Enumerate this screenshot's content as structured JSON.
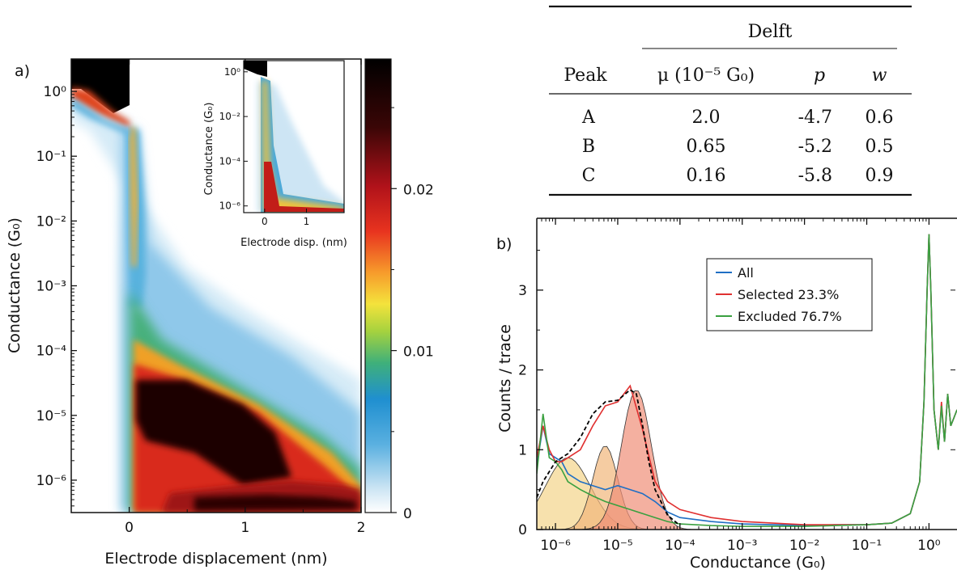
{
  "panel_labels": {
    "a": "a)",
    "b": "b)"
  },
  "table": {
    "group_header": "Delft",
    "columns": [
      "Peak",
      "μ (10⁻⁵ G₀)",
      "p",
      "w"
    ],
    "rows": [
      {
        "peak": "A",
        "mu": "2.0",
        "p": "-4.7",
        "w": "0.6"
      },
      {
        "peak": "B",
        "mu": "0.65",
        "p": "-5.2",
        "w": "0.5"
      },
      {
        "peak": "C",
        "mu": "0.16",
        "p": "-5.8",
        "w": "0.9"
      }
    ]
  },
  "chart_data": [
    {
      "id": "a-main",
      "type": "heatmap",
      "xlabel": "Electrode displacement (nm)",
      "ylabel": "Conductance (G₀)",
      "xlim": [
        -0.5,
        2.0
      ],
      "ylim_log10": [
        -6.5,
        0.5
      ],
      "x_ticks": [
        "0",
        "1",
        "2"
      ],
      "y_ticks": [
        "10⁰",
        "10⁻¹",
        "10⁻²",
        "10⁻³",
        "10⁻⁴",
        "10⁻⁵",
        "10⁻⁶"
      ],
      "colorbar": {
        "range": [
          0,
          0.028
        ],
        "ticks": [
          "0",
          "0.01",
          "0.02"
        ],
        "colors": [
          "#ffffff",
          "#cfe6f4",
          "#5ab0e0",
          "#1f8fd0",
          "#3fb07a",
          "#a6d23e",
          "#f4e33c",
          "#f79a2b",
          "#e8331f",
          "#b0121a",
          "#3a0606",
          "#000000"
        ]
      },
      "regions": [
        {
          "name": "contact",
          "x": [
            -0.5,
            0.0
          ],
          "log10_g": [
            0.0,
            0.5
          ],
          "density": "high"
        },
        {
          "name": "molecular plateau",
          "x": [
            0.1,
            1.2
          ],
          "log10_g": [
            -5.5,
            -4.3
          ],
          "density": "high"
        },
        {
          "name": "background",
          "x": [
            0.4,
            1.9
          ],
          "log10_g": [
            -6.4,
            -5.9
          ],
          "density": "high"
        }
      ]
    },
    {
      "id": "a-inset",
      "type": "heatmap",
      "xlabel": "Electrode disp. (nm)",
      "ylabel": "Conductance (G₀)",
      "xlim": [
        -0.5,
        1.9
      ],
      "ylim_log10": [
        -6.3,
        0.5
      ],
      "x_ticks": [
        "0",
        "1"
      ],
      "y_ticks": [
        "10⁰",
        "10⁻²",
        "10⁻⁴",
        "10⁻⁶"
      ]
    },
    {
      "id": "b",
      "type": "line",
      "xlabel": "Conductance (G₀)",
      "ylabel": "Counts / trace",
      "x_scale": "log",
      "xlim_log10": [
        -6.3,
        0.45
      ],
      "ylim": [
        0,
        3.9
      ],
      "x_ticks": [
        "10⁻⁶",
        "10⁻⁵",
        "10⁻⁴",
        "10⁻³",
        "10⁻²",
        "10⁻¹",
        "10⁰"
      ],
      "y_ticks": [
        "0",
        "1",
        "2",
        "3"
      ],
      "legend_position": "top-right",
      "series": [
        {
          "name": "All",
          "color": "#1f6fc4",
          "log10x": [
            -6.3,
            -6.2,
            -6.1,
            -6.0,
            -5.9,
            -5.8,
            -5.6,
            -5.4,
            -5.2,
            -5.0,
            -4.8,
            -4.6,
            -4.4,
            -4.2,
            -4.0,
            -3.5,
            -3.0,
            -2.5,
            -2.0,
            -1.5,
            -1.0,
            -0.6,
            -0.3,
            -0.15,
            -0.08,
            -0.03,
            0.0,
            0.03,
            0.08,
            0.15,
            0.2,
            0.25,
            0.3,
            0.35,
            0.4,
            0.45
          ],
          "y": [
            0.8,
            1.3,
            0.95,
            0.9,
            0.85,
            0.7,
            0.6,
            0.55,
            0.5,
            0.55,
            0.5,
            0.45,
            0.35,
            0.22,
            0.15,
            0.1,
            0.07,
            0.06,
            0.05,
            0.06,
            0.06,
            0.08,
            0.2,
            0.6,
            1.6,
            3.0,
            3.7,
            3.0,
            1.5,
            1.0,
            1.55,
            1.1,
            1.7,
            1.3,
            1.4,
            1.5
          ]
        },
        {
          "name": "Selected 23.3%",
          "color": "#e03030",
          "log10x": [
            -6.3,
            -6.2,
            -6.1,
            -6.0,
            -5.9,
            -5.8,
            -5.6,
            -5.4,
            -5.2,
            -5.0,
            -4.8,
            -4.6,
            -4.4,
            -4.2,
            -4.0,
            -3.5,
            -3.0,
            -2.5,
            -2.0,
            -1.5,
            -1.0,
            -0.6,
            -0.3,
            -0.15,
            -0.08,
            -0.03,
            0.0,
            0.03,
            0.08,
            0.15,
            0.2,
            0.25,
            0.3,
            0.35,
            0.4,
            0.45
          ],
          "y": [
            0.9,
            1.3,
            1.0,
            0.85,
            0.85,
            0.9,
            1.0,
            1.3,
            1.55,
            1.6,
            1.8,
            1.25,
            0.6,
            0.35,
            0.25,
            0.15,
            0.1,
            0.08,
            0.06,
            0.06,
            0.06,
            0.08,
            0.2,
            0.6,
            1.6,
            3.0,
            3.7,
            3.0,
            1.5,
            1.0,
            1.6,
            1.1,
            1.7,
            1.3,
            1.4,
            1.5
          ]
        },
        {
          "name": "Excluded 76.7%",
          "color": "#3aa040",
          "log10x": [
            -6.3,
            -6.2,
            -6.1,
            -6.0,
            -5.9,
            -5.8,
            -5.6,
            -5.4,
            -5.2,
            -5.0,
            -4.8,
            -4.6,
            -4.4,
            -4.2,
            -4.0,
            -3.5,
            -3.0,
            -2.5,
            -2.0,
            -1.5,
            -1.0,
            -0.6,
            -0.3,
            -0.15,
            -0.08,
            -0.03,
            0.0,
            0.03,
            0.08,
            0.15,
            0.2,
            0.25,
            0.3,
            0.35,
            0.4,
            0.45
          ],
          "y": [
            0.7,
            1.45,
            0.9,
            0.85,
            0.75,
            0.6,
            0.5,
            0.42,
            0.35,
            0.3,
            0.25,
            0.2,
            0.15,
            0.1,
            0.07,
            0.05,
            0.04,
            0.04,
            0.04,
            0.05,
            0.06,
            0.08,
            0.2,
            0.6,
            1.6,
            3.0,
            3.7,
            3.0,
            1.5,
            1.0,
            1.55,
            1.1,
            1.7,
            1.3,
            1.4,
            1.5
          ]
        }
      ],
      "fit": {
        "name": "fit",
        "color": "#000000",
        "style": "dashed",
        "log10x": [
          -6.3,
          -6.2,
          -6.0,
          -5.8,
          -5.6,
          -5.4,
          -5.2,
          -5.0,
          -4.8,
          -4.7,
          -4.6,
          -4.5,
          -4.4,
          -4.2,
          -4.0
        ],
        "y": [
          0.4,
          0.6,
          0.85,
          0.95,
          1.15,
          1.45,
          1.6,
          1.62,
          1.75,
          1.7,
          1.3,
          0.85,
          0.5,
          0.18,
          0.05
        ]
      },
      "gaussians": [
        {
          "peak": "C",
          "center_log10": -5.8,
          "amplitude": 0.9,
          "width": 0.9,
          "color": "#f3d48a"
        },
        {
          "peak": "B",
          "center_log10": -5.2,
          "amplitude": 1.05,
          "width": 0.5,
          "color": "#f1b77a"
        },
        {
          "peak": "A",
          "center_log10": -4.7,
          "amplitude": 1.75,
          "width": 0.6,
          "color": "#ef8f78"
        }
      ]
    }
  ]
}
